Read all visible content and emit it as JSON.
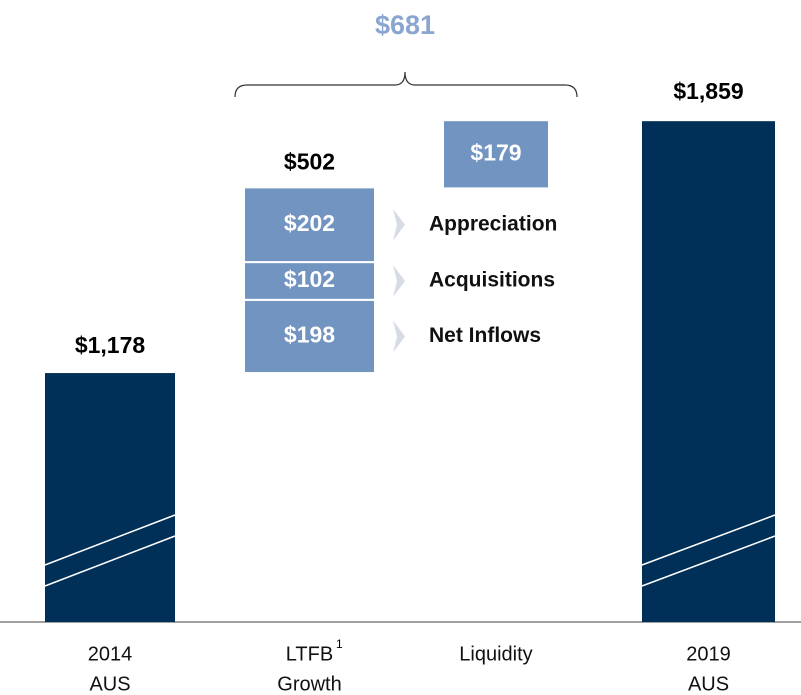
{
  "chart_data": {
    "type": "waterfall",
    "title": "$681",
    "categories": [
      [
        "2014",
        "AUS"
      ],
      [
        "LTFB",
        "Growth"
      ],
      [
        "Liquidity"
      ],
      [
        "2019",
        "AUS"
      ]
    ],
    "footnote_mark": "1",
    "start": {
      "value": 1178,
      "label": "$1,178"
    },
    "growth": {
      "series": [
        {
          "name": "Net Inflows",
          "values": [
            198
          ],
          "value_labels": [
            "$198"
          ]
        },
        {
          "name": "Acquisitions",
          "values": [
            102
          ],
          "value_labels": [
            "$102"
          ]
        },
        {
          "name": "Appreciation",
          "values": [
            202
          ],
          "value_labels": [
            "$202"
          ]
        }
      ],
      "total": 502,
      "total_label": "$502"
    },
    "liquidity": {
      "value": 179,
      "label": "$179"
    },
    "end": {
      "value": 1859,
      "label": "$1,859"
    },
    "ylim": [
      505,
      1900
    ],
    "axis_break": true,
    "total_color": "#003057",
    "step_color": "#7294c1",
    "title_color": "#8aa6d0"
  }
}
